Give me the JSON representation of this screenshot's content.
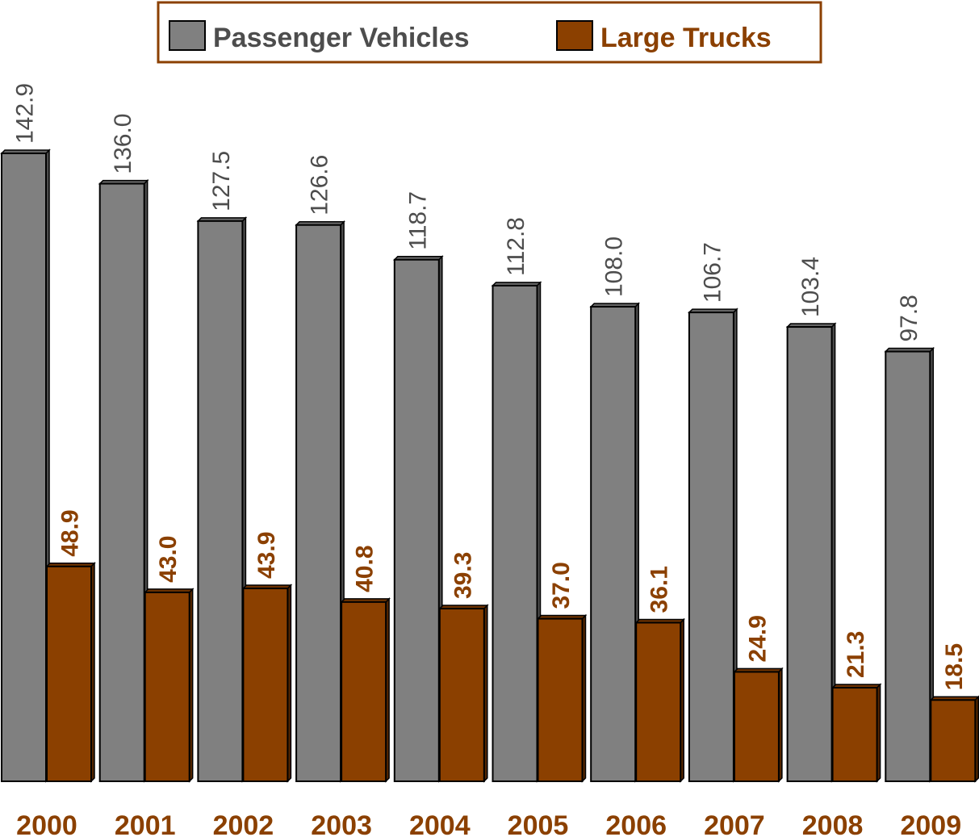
{
  "chart_data": {
    "type": "bar",
    "categories": [
      "2000",
      "2001",
      "2002",
      "2003",
      "2004",
      "2005",
      "2006",
      "2007",
      "2008",
      "2009"
    ],
    "series": [
      {
        "name": "Passenger Vehicles",
        "color": "#808080",
        "values": [
          142.9,
          136,
          127.5,
          126.6,
          118.7,
          112.8,
          108,
          106.7,
          103.4,
          97.8
        ],
        "value_labels": [
          "142.9",
          "136.0",
          "127.5",
          "126.6",
          "118.7",
          "112.8",
          "108.0",
          "106.7",
          "103.4",
          "97.8"
        ]
      },
      {
        "name": "Large Trucks",
        "color": "#8b4000",
        "values": [
          48.9,
          43,
          43.9,
          40.8,
          39.3,
          37,
          36.1,
          24.9,
          21.3,
          18.5
        ],
        "value_labels": [
          "48.9",
          "43.0",
          "43.9",
          "40.8",
          "39.3",
          "37.0",
          "36.1",
          "24.9",
          "21.3",
          "18.5"
        ]
      }
    ]
  }
}
